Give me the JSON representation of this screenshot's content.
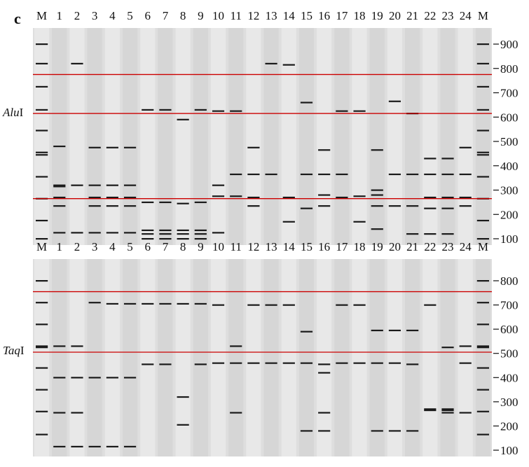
{
  "figure": {
    "panel_letter": "c",
    "colors": {
      "gel_background": "#dedede",
      "lane_light": "#e8e8e8",
      "lane_dark": "#d6d6d6",
      "band": "#1a1a1a",
      "reference_line": "#cc0000"
    }
  },
  "lane_labels": [
    "M",
    "1",
    "2",
    "3",
    "4",
    "5",
    "6",
    "7",
    "8",
    "9",
    "10",
    "11",
    "12",
    "13",
    "14",
    "15",
    "16",
    "17",
    "18",
    "19",
    "20",
    "21",
    "22",
    "23",
    "24",
    "M"
  ],
  "gels": [
    {
      "enzyme": "Alu",
      "enzyme_suffix": "I",
      "size_labels": [
        "900",
        "800",
        "700",
        "600",
        "500",
        "400",
        "300",
        "200",
        "100"
      ],
      "size_ticks": [
        900,
        800,
        700,
        600,
        500,
        400,
        300,
        200,
        100
      ],
      "reference_sizes": [
        775,
        615,
        265
      ],
      "lanes": [
        [
          900,
          820,
          725,
          630,
          545,
          455,
          445,
          355,
          265,
          175,
          100
        ],
        [
          480,
          320,
          315,
          270,
          235,
          125
        ],
        [
          820,
          320,
          125
        ],
        [
          475,
          320,
          270,
          235,
          125
        ],
        [
          475,
          320,
          270,
          235,
          125
        ],
        [
          475,
          320,
          270,
          235,
          125
        ],
        [
          630,
          250,
          135,
          120,
          100
        ],
        [
          630,
          250,
          135,
          120,
          100
        ],
        [
          590,
          245,
          135,
          120,
          100
        ],
        [
          630,
          250,
          135,
          120,
          100
        ],
        [
          625,
          320,
          275,
          125
        ],
        [
          625,
          365,
          275
        ],
        [
          475,
          365,
          270,
          235
        ],
        [
          820,
          365
        ],
        [
          815,
          270,
          170
        ],
        [
          660,
          365,
          225
        ],
        [
          465,
          365,
          280,
          235
        ],
        [
          625,
          365,
          270
        ],
        [
          625,
          275,
          170
        ],
        [
          465,
          300,
          280,
          235,
          140
        ],
        [
          665,
          365,
          235
        ],
        [
          615,
          365,
          235,
          120
        ],
        [
          430,
          365,
          270,
          225,
          120
        ],
        [
          430,
          365,
          270,
          225,
          120
        ],
        [
          475,
          365,
          270,
          235
        ],
        [
          900,
          820,
          725,
          630,
          545,
          455,
          445,
          355,
          265,
          175,
          100
        ]
      ]
    },
    {
      "enzyme": "Taq",
      "enzyme_suffix": "I",
      "size_labels": [
        "800",
        "700",
        "600",
        "500",
        "400",
        "300",
        "200",
        "100"
      ],
      "size_ticks": [
        800,
        700,
        600,
        500,
        400,
        300,
        200,
        100
      ],
      "reference_sizes": [
        755,
        505
      ],
      "lanes": [
        [
          800,
          710,
          620,
          530,
          525,
          440,
          350,
          260,
          165
        ],
        [
          530,
          400,
          255,
          115
        ],
        [
          530,
          400,
          255,
          115
        ],
        [
          710,
          400,
          115
        ],
        [
          705,
          400,
          115
        ],
        [
          705,
          400,
          115
        ],
        [
          705,
          455
        ],
        [
          705,
          455
        ],
        [
          705,
          320,
          205
        ],
        [
          705,
          455
        ],
        [
          700,
          460
        ],
        [
          530,
          460,
          255
        ],
        [
          700,
          460
        ],
        [
          700,
          460
        ],
        [
          700,
          460
        ],
        [
          590,
          460,
          180
        ],
        [
          455,
          420,
          255,
          180
        ],
        [
          700,
          460
        ],
        [
          700,
          460
        ],
        [
          595,
          460,
          180
        ],
        [
          595,
          460,
          180
        ],
        [
          595,
          455,
          180
        ],
        [
          700,
          270,
          265
        ],
        [
          525,
          270,
          265,
          255
        ],
        [
          530,
          460,
          255
        ],
        [
          800,
          710,
          620,
          530,
          525,
          440,
          350,
          260,
          165
        ]
      ]
    }
  ]
}
